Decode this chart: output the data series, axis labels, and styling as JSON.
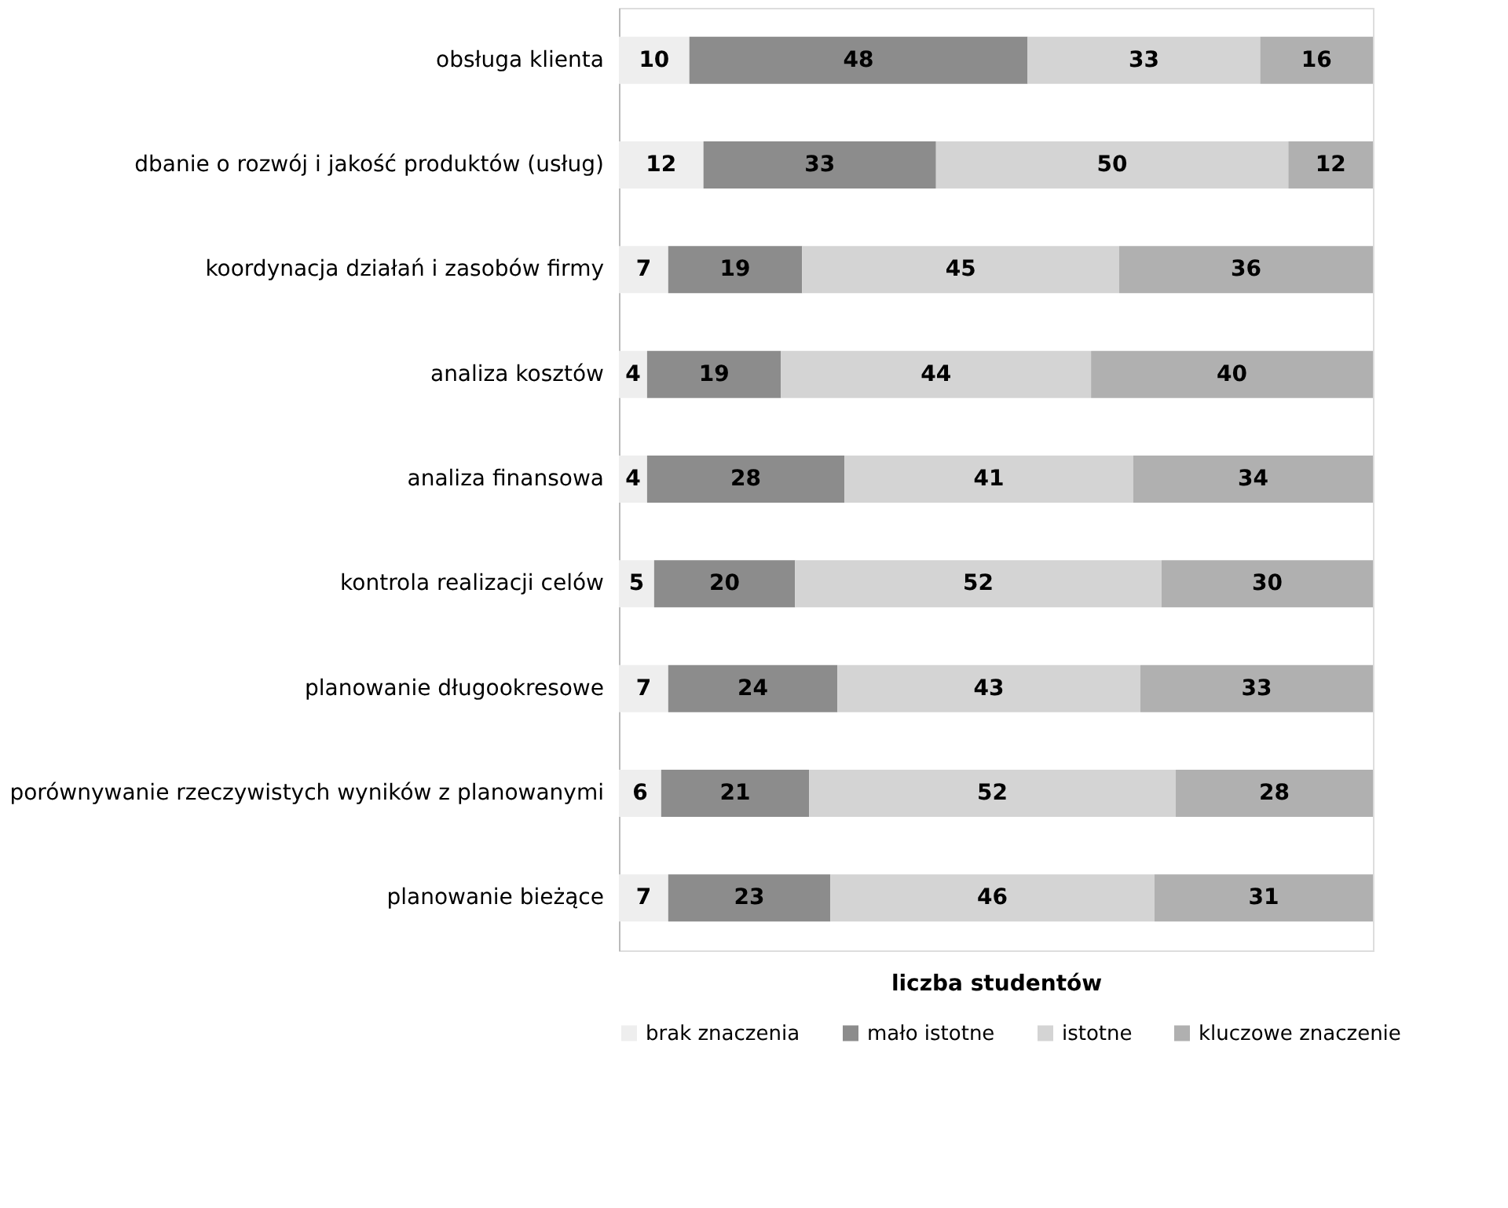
{
  "chart_data": {
    "type": "bar",
    "orientation": "horizontal",
    "stacked": true,
    "data_labels": true,
    "xlabel": "liczba studentów",
    "xlim": [
      0,
      107
    ],
    "tick_labels": "y",
    "grid": false,
    "legend": "bottom",
    "categories": [
      "obsługa klienta",
      "dbanie o rozwój i jakość produktów (usług)",
      "koordynacja działań i zasobów firmy",
      "analiza kosztów",
      "analiza finansowa",
      "kontrola realizacji celów",
      "planowanie długookresowe",
      "porównywanie rzeczywistych wyników z planowanymi",
      "planowanie bieżące"
    ],
    "series": [
      {
        "name": "brak znaczenia",
        "color": "#eeeeee",
        "values": [
          10,
          12,
          7,
          4,
          4,
          5,
          7,
          6,
          7
        ]
      },
      {
        "name": "mało istotne",
        "color": "#8c8c8c",
        "values": [
          48,
          33,
          19,
          19,
          28,
          20,
          24,
          21,
          23
        ]
      },
      {
        "name": "istotne",
        "color": "#d4d4d4",
        "values": [
          33,
          50,
          45,
          44,
          41,
          52,
          43,
          52,
          46
        ]
      },
      {
        "name": "kluczowe znaczenie",
        "color": "#b0b0b0",
        "values": [
          16,
          12,
          36,
          40,
          34,
          30,
          33,
          28,
          31
        ]
      }
    ]
  }
}
